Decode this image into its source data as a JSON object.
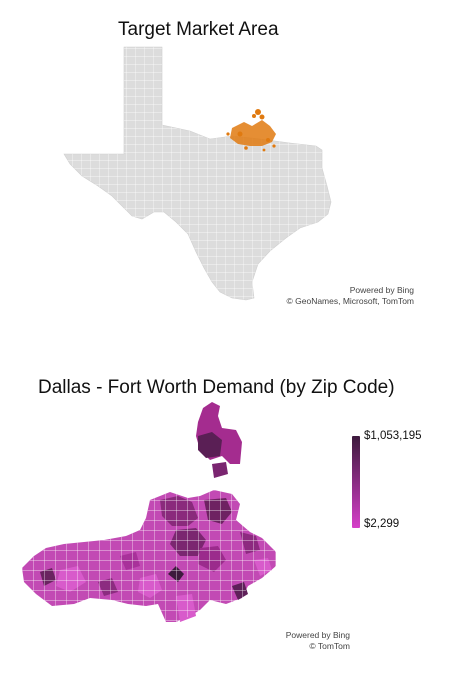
{
  "top_map": {
    "title": "Target Market Area",
    "credit_line1": "Powered by Bing",
    "credit_line2": "© GeoNames, Microsoft, TomTom",
    "base_color": "#dcdcdc",
    "highlight_color": "#e07a10"
  },
  "bottom_map": {
    "title": "Dallas - Fort Worth Demand (by Zip Code)",
    "credit_line1": "Powered by Bing",
    "credit_line2": "© TomTom",
    "legend": {
      "max_label": "$1,053,195",
      "min_label": "$2,299",
      "max_color": "#3d1a3d",
      "min_color": "#d63fc9"
    }
  }
}
